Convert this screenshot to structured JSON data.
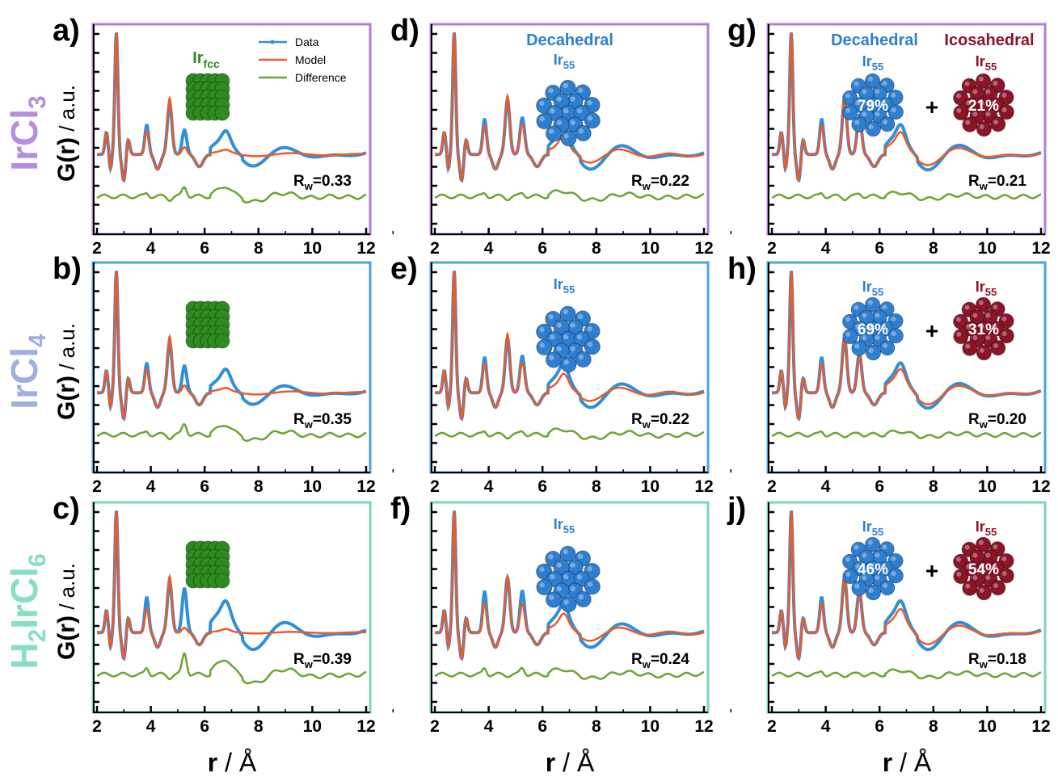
{
  "figure": {
    "xlabel_r": "r",
    "xlabel_unit": " / Å",
    "ylabel_g": "G(r)",
    "ylabel_unit": " / a.u.",
    "colors": {
      "data": "#2f8fd8",
      "model": "#ee5a2a",
      "difference": "#6aa532",
      "fcc": "#2e8b1f",
      "decahedral": "#2f7fd0",
      "icosahedral": "#8a1428"
    },
    "row_frame_colors": [
      "#b07ddb",
      "#4aa3dc",
      "#7dd6b6"
    ],
    "row_labels": [
      {
        "main": "IrCl",
        "sub": "3",
        "color": "#b48ee0"
      },
      {
        "main": "IrCl",
        "sub": "4",
        "color": "#9fb0e0"
      },
      {
        "main": "H",
        "sub": "2",
        "main2": "IrCl",
        "sub2": "6",
        "color": "#86e0c0"
      }
    ],
    "legend": [
      "Data",
      "Model",
      "Difference"
    ],
    "x_ticks": [
      "2",
      "4",
      "6",
      "8",
      "10",
      "12"
    ]
  },
  "chart_data": [
    {
      "type": "line",
      "panel": "a)",
      "structure": "fcc",
      "structure_label": "Ir",
      "structure_sub": "fcc",
      "rw_label": "R",
      "rw_sub": "w",
      "rw_value": "=0.33",
      "xlim": [
        2,
        12
      ],
      "grid": false,
      "series": [
        {
          "name": "Data"
        },
        {
          "name": "Model"
        },
        {
          "name": "Difference"
        }
      ],
      "data_amps": [
        1.0,
        0.1,
        0.42,
        0.2,
        0.12,
        0.1,
        0.06
      ],
      "model_amps": [
        1.0,
        0.08,
        0.46,
        0.06,
        0.04,
        0.02,
        0.0
      ]
    },
    {
      "type": "line",
      "panel": "d)",
      "structure": "decahedral",
      "structure_title": "Decahedral",
      "structure_label": "Ir",
      "structure_sub": "55",
      "rw_label": "R",
      "rw_sub": "w",
      "rw_value": "=0.22",
      "xlim": [
        2,
        12
      ],
      "grid": false,
      "series": [
        {
          "name": "Data"
        },
        {
          "name": "Model"
        },
        {
          "name": "Difference"
        }
      ],
      "data_amps": [
        1.0,
        0.12,
        0.45,
        0.3,
        0.15,
        0.12,
        0.08
      ],
      "model_amps": [
        1.0,
        0.1,
        0.48,
        0.25,
        0.12,
        0.1,
        0.06
      ]
    },
    {
      "type": "line",
      "panel": "g)",
      "structure": "mix",
      "title_left": "Decahedral",
      "title_right": "Icosahedral",
      "structure_label": "Ir",
      "structure_sub": "55",
      "pct_left": "79%",
      "pct_right": "21%",
      "plus": "+",
      "rw_label": "R",
      "rw_sub": "w",
      "rw_value": "=0.21",
      "xlim": [
        2,
        12
      ],
      "grid": false,
      "series": [
        {
          "name": "Data"
        },
        {
          "name": "Model"
        },
        {
          "name": "Difference"
        }
      ],
      "data_amps": [
        1.0,
        0.12,
        0.45,
        0.32,
        0.16,
        0.12,
        0.08
      ],
      "model_amps": [
        1.0,
        0.1,
        0.48,
        0.28,
        0.18,
        0.1,
        0.06
      ]
    },
    {
      "type": "line",
      "panel": "b)",
      "structure": "fcc",
      "structure_label": "",
      "rw_label": "R",
      "rw_sub": "w",
      "rw_value": "=0.35",
      "xlim": [
        2,
        12
      ],
      "grid": false,
      "series": [
        {
          "name": "Data"
        },
        {
          "name": "Model"
        },
        {
          "name": "Difference"
        }
      ],
      "data_amps": [
        1.0,
        0.1,
        0.42,
        0.22,
        0.12,
        0.1,
        0.06
      ],
      "model_amps": [
        1.0,
        0.08,
        0.46,
        0.06,
        0.04,
        0.02,
        0.0
      ]
    },
    {
      "type": "line",
      "panel": "e)",
      "structure": "decahedral",
      "structure_label": "Ir",
      "structure_sub": "55",
      "rw_label": "R",
      "rw_sub": "w",
      "rw_value": "=0.22",
      "xlim": [
        2,
        12
      ],
      "grid": false,
      "series": [
        {
          "name": "Data"
        },
        {
          "name": "Model"
        },
        {
          "name": "Difference"
        }
      ],
      "data_amps": [
        1.0,
        0.12,
        0.45,
        0.3,
        0.15,
        0.12,
        0.08
      ],
      "model_amps": [
        1.0,
        0.1,
        0.48,
        0.25,
        0.12,
        0.1,
        0.06
      ]
    },
    {
      "type": "line",
      "panel": "h)",
      "structure": "mix",
      "structure_label": "Ir",
      "structure_sub": "55",
      "pct_left": "69%",
      "pct_right": "31%",
      "plus": "+",
      "rw_label": "R",
      "rw_sub": "w",
      "rw_value": "=0.20",
      "xlim": [
        2,
        12
      ],
      "grid": false,
      "series": [
        {
          "name": "Data"
        },
        {
          "name": "Model"
        },
        {
          "name": "Difference"
        }
      ],
      "data_amps": [
        1.0,
        0.12,
        0.45,
        0.32,
        0.16,
        0.12,
        0.08
      ],
      "model_amps": [
        1.0,
        0.1,
        0.46,
        0.3,
        0.2,
        0.1,
        0.06
      ]
    },
    {
      "type": "line",
      "panel": "c)",
      "structure": "fcc",
      "structure_label": "",
      "rw_label": "R",
      "rw_sub": "w",
      "rw_value": "=0.39",
      "xlim": [
        2,
        12
      ],
      "grid": false,
      "series": [
        {
          "name": "Data"
        },
        {
          "name": "Model"
        },
        {
          "name": "Difference"
        }
      ],
      "data_amps": [
        1.0,
        0.12,
        0.42,
        0.36,
        0.18,
        0.12,
        0.08
      ],
      "model_amps": [
        1.0,
        0.08,
        0.46,
        0.04,
        0.02,
        0.02,
        0.0
      ]
    },
    {
      "type": "line",
      "panel": "f)",
      "structure": "decahedral",
      "structure_label": "Ir",
      "structure_sub": "55",
      "rw_label": "R",
      "rw_sub": "w",
      "rw_value": "=0.24",
      "xlim": [
        2,
        12
      ],
      "grid": false,
      "series": [
        {
          "name": "Data"
        },
        {
          "name": "Model"
        },
        {
          "name": "Difference"
        }
      ],
      "data_amps": [
        1.0,
        0.14,
        0.45,
        0.34,
        0.15,
        0.12,
        0.08
      ],
      "model_amps": [
        1.0,
        0.1,
        0.46,
        0.24,
        0.12,
        0.1,
        0.06
      ]
    },
    {
      "type": "line",
      "panel": "j)",
      "structure": "mix",
      "structure_label": "Ir",
      "structure_sub": "55",
      "pct_left": "46%",
      "pct_right": "54%",
      "plus": "+",
      "rw_label": "R",
      "rw_sub": "w",
      "rw_value": "=0.18",
      "xlim": [
        2,
        12
      ],
      "grid": false,
      "series": [
        {
          "name": "Data"
        },
        {
          "name": "Model"
        },
        {
          "name": "Difference"
        }
      ],
      "data_amps": [
        1.0,
        0.12,
        0.45,
        0.34,
        0.18,
        0.12,
        0.08
      ],
      "model_amps": [
        1.0,
        0.1,
        0.46,
        0.32,
        0.2,
        0.1,
        0.06
      ]
    }
  ]
}
